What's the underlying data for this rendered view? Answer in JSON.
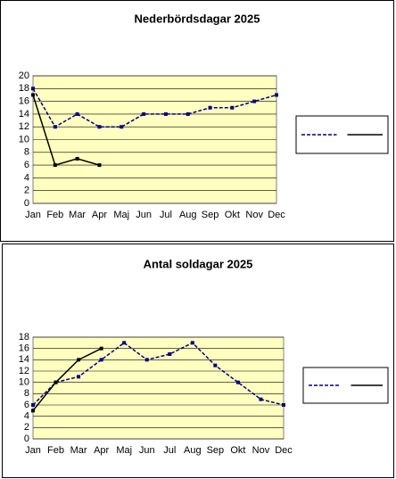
{
  "chart_data": [
    {
      "type": "line",
      "title": "Nederbördsdagar 2025",
      "categories": [
        "Jan",
        "Feb",
        "Mar",
        "Apr",
        "Maj",
        "Jun",
        "Jul",
        "Aug",
        "Sep",
        "Okt",
        "Nov",
        "Dec"
      ],
      "series": [
        {
          "color": "#000080",
          "line_style": "dashed",
          "values": [
            18,
            12,
            14,
            12,
            12,
            14,
            14,
            14,
            15,
            15,
            16,
            17
          ]
        },
        {
          "color": "#000000",
          "line_style": "solid",
          "values": [
            17,
            6,
            7,
            6,
            null,
            null,
            null,
            null,
            null,
            null,
            null,
            null
          ]
        }
      ],
      "ylim": [
        0,
        20
      ],
      "yticks": [
        0,
        2,
        4,
        6,
        8,
        10,
        12,
        14,
        16,
        18,
        20
      ],
      "grid": true,
      "legend": "right",
      "background": "#ffffc0"
    },
    {
      "type": "line",
      "title": "Antal soldagar 2025",
      "categories": [
        "Jan",
        "Feb",
        "Mar",
        "Apr",
        "Maj",
        "Jun",
        "Jul",
        "Aug",
        "Sep",
        "Okt",
        "Nov",
        "Dec"
      ],
      "series": [
        {
          "color": "#000080",
          "line_style": "dashed",
          "values": [
            6,
            10,
            11,
            14,
            17,
            14,
            15,
            17,
            13,
            10,
            7,
            6
          ]
        },
        {
          "color": "#000000",
          "line_style": "solid",
          "values": [
            5,
            10,
            14,
            16,
            null,
            null,
            null,
            null,
            null,
            null,
            null,
            null
          ]
        }
      ],
      "ylim": [
        0,
        18
      ],
      "yticks": [
        0,
        2,
        4,
        6,
        8,
        10,
        12,
        14,
        16,
        18
      ],
      "grid": true,
      "legend": "right",
      "background": "#ffffc0"
    }
  ]
}
